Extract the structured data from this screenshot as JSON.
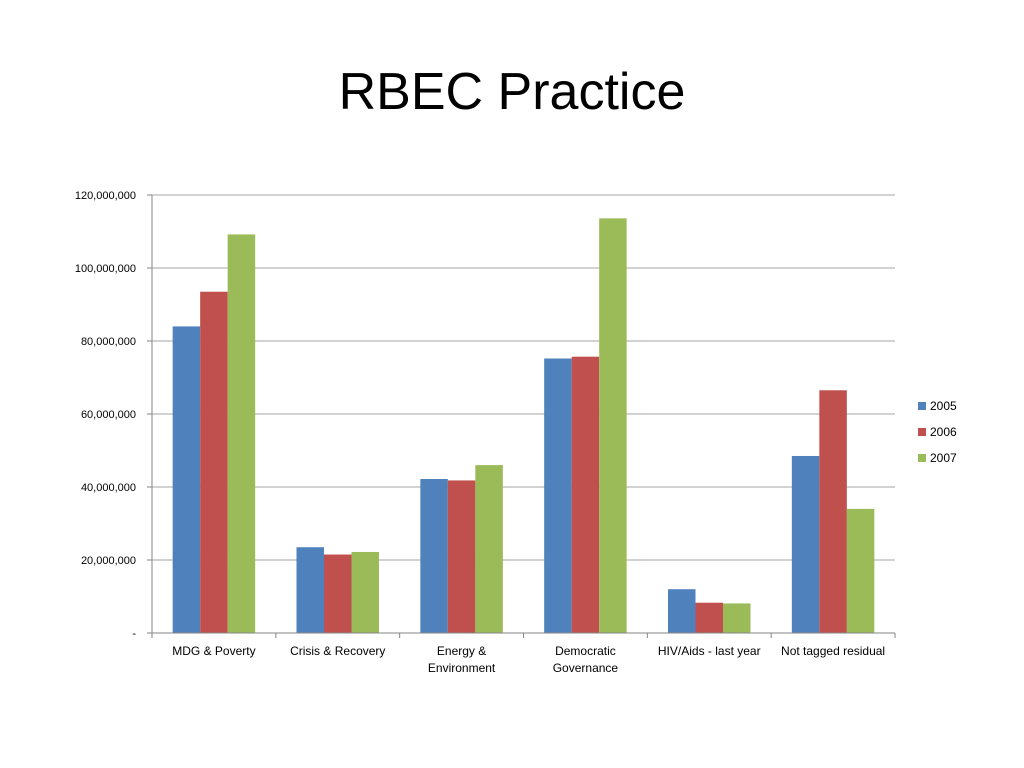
{
  "slide": {
    "title": "RBEC Practice"
  },
  "chart_data": {
    "type": "bar",
    "title": "",
    "xlabel": "",
    "ylabel": "",
    "categories": [
      [
        "MDG & Poverty"
      ],
      [
        "Crisis & Recovery"
      ],
      [
        "Energy &",
        "Environment"
      ],
      [
        "Democratic",
        "Governance"
      ],
      [
        "HIV/Aids - last year"
      ],
      [
        "Not tagged residual"
      ]
    ],
    "series": [
      {
        "name": "2005",
        "color": "#4F81BD",
        "values": [
          84000000,
          23500000,
          42200000,
          75200000,
          12000000,
          48500000
        ]
      },
      {
        "name": "2006",
        "color": "#C0504D",
        "values": [
          93500000,
          21500000,
          41800000,
          75700000,
          8300000,
          66500000
        ]
      },
      {
        "name": "2007",
        "color": "#9BBB59",
        "values": [
          109200000,
          22200000,
          46000000,
          113600000,
          8100000,
          34000000
        ]
      }
    ],
    "ylim": [
      0,
      120000000
    ],
    "yticks": [
      {
        "value": 0,
        "label": "-"
      },
      {
        "value": 20000000,
        "label": "20,000,000"
      },
      {
        "value": 40000000,
        "label": "40,000,000"
      },
      {
        "value": 60000000,
        "label": "60,000,000"
      },
      {
        "value": 80000000,
        "label": "80,000,000"
      },
      {
        "value": 100000000,
        "label": "100,000,000"
      },
      {
        "value": 120000000,
        "label": "120,000,000"
      }
    ],
    "grid": true,
    "legend_position": "right"
  }
}
